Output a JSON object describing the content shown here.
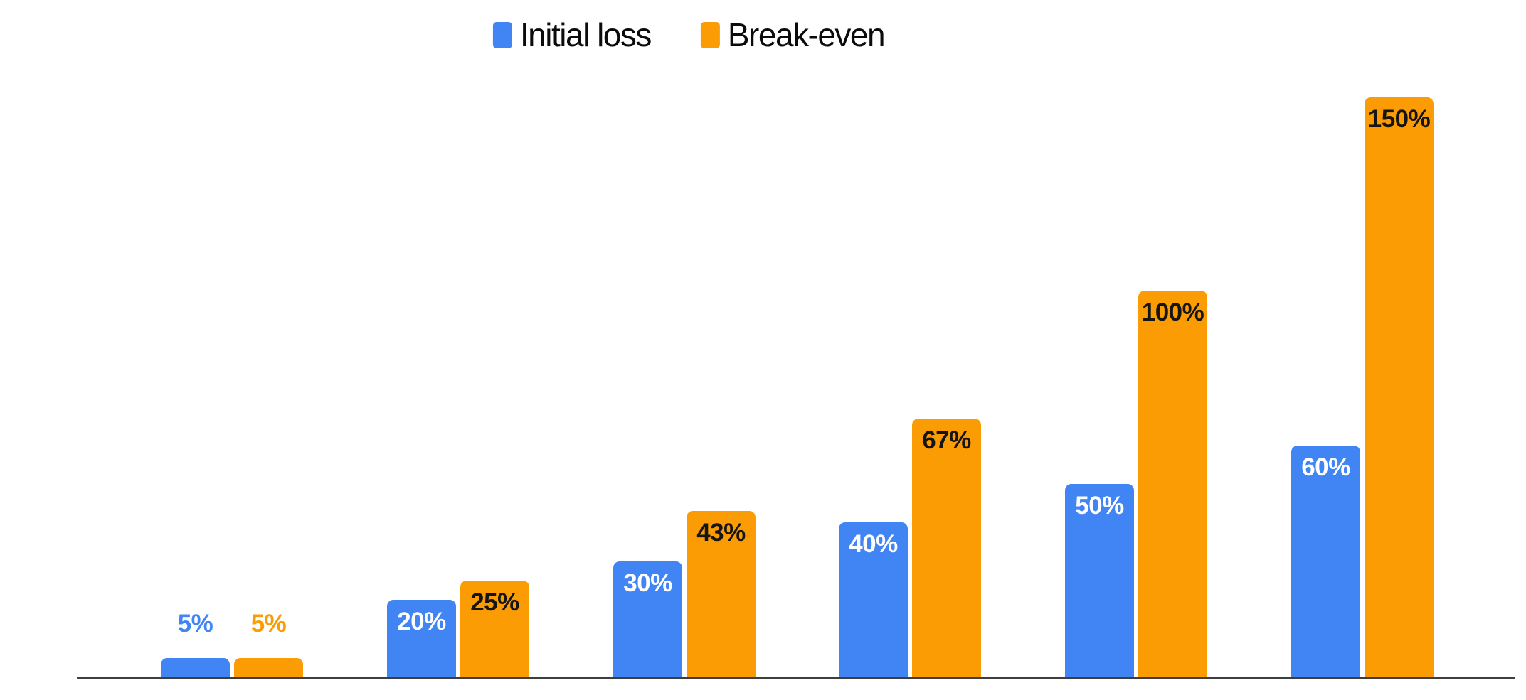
{
  "chart_data": {
    "type": "bar",
    "title": "",
    "categories": [
      "",
      "",
      "",
      "",
      "",
      ""
    ],
    "series": [
      {
        "name": "Initial loss",
        "color": "#4185F4",
        "values": [
          5,
          20,
          30,
          40,
          50,
          60
        ],
        "labels": [
          "5%",
          "20%",
          "30%",
          "40%",
          "50%",
          "60%"
        ],
        "inside_label_color": "#ffffff"
      },
      {
        "name": "Break-even",
        "color": "#FB9C04",
        "values": [
          5,
          25,
          43,
          67,
          100,
          150
        ],
        "labels": [
          "5%",
          "25%",
          "43%",
          "67%",
          "100%",
          "150%"
        ],
        "inside_label_color": "#151515"
      }
    ],
    "ylim": [
      0,
      157
    ],
    "y_axis_visible": false,
    "x_axis_tick_labels_visible": false,
    "gridlines": false,
    "legend_position": "top-center",
    "axis_color": "#3e3e3e",
    "background": "#ffffff"
  }
}
